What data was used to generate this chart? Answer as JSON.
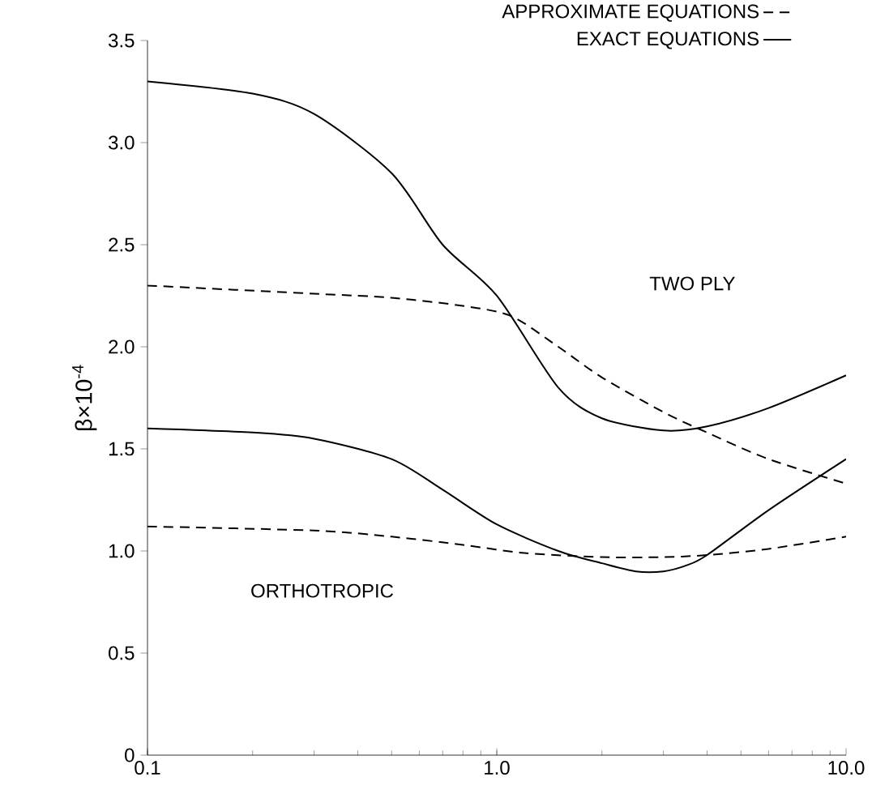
{
  "chart_data": {
    "type": "line",
    "ylabel": "β×10$^{-4}$",
    "log": "x",
    "xlim": [
      0.1,
      10
    ],
    "ylim": [
      0,
      3.5
    ],
    "xticks": [
      {
        "value": 0.1,
        "label": "0.1"
      },
      {
        "value": 1,
        "label": "1.0"
      },
      {
        "value": 10,
        "label": "10.0"
      }
    ],
    "yticks": [
      {
        "value": 0,
        "label": "0"
      },
      {
        "value": 0.5,
        "label": "0.5"
      },
      {
        "value": 1,
        "label": "1.0"
      },
      {
        "value": 1.5,
        "label": "1.5"
      },
      {
        "value": 2,
        "label": "2.0"
      },
      {
        "value": 2.5,
        "label": "2.5"
      },
      {
        "value": 3,
        "label": "3.0"
      },
      {
        "value": 3.5,
        "label": "3.5"
      }
    ],
    "legend": "top right",
    "grid": false,
    "marker": "none",
    "series": [
      {
        "name": "APPROXIMATE EQUATIONS",
        "color": "#000000",
        "line_style": "dashed",
        "x": [
          0.1,
          0.3,
          0.5,
          0.8,
          1.1,
          1.5,
          2,
          3,
          4,
          6,
          10
        ],
        "values": [
          2.3,
          2.26,
          2.24,
          2.2,
          2.15,
          2.0,
          1.85,
          1.68,
          1.58,
          1.45,
          1.33
        ]
      },
      {
        "name": "EXACT EQUATIONS",
        "color": "#000000",
        "line_style": "solid",
        "x": [
          0.1,
          0.2,
          0.3,
          0.5,
          0.7,
          1.0,
          1.5,
          2,
          3,
          4,
          6,
          10
        ],
        "values": [
          3.3,
          3.24,
          3.14,
          2.85,
          2.5,
          2.25,
          1.8,
          1.65,
          1.59,
          1.61,
          1.7,
          1.86
        ]
      },
      {
        "color": "#000000",
        "line_style": "dashed",
        "x": [
          0.1,
          0.3,
          0.5,
          0.8,
          1.2,
          2,
          3,
          4,
          6,
          10
        ],
        "values": [
          1.12,
          1.1,
          1.07,
          1.03,
          0.99,
          0.97,
          0.97,
          0.98,
          1.01,
          1.07
        ]
      },
      {
        "color": "#000000",
        "line_style": "solid",
        "x": [
          0.1,
          0.2,
          0.3,
          0.5,
          0.7,
          1.0,
          1.5,
          2,
          2.5,
          3,
          3.5,
          4,
          6,
          10
        ],
        "values": [
          1.6,
          1.58,
          1.55,
          1.45,
          1.3,
          1.13,
          1.0,
          0.94,
          0.9,
          0.9,
          0.93,
          0.98,
          1.2,
          1.45
        ]
      }
    ],
    "annotations": [
      "TWO PLY",
      "ORTHOTROPIC"
    ]
  }
}
